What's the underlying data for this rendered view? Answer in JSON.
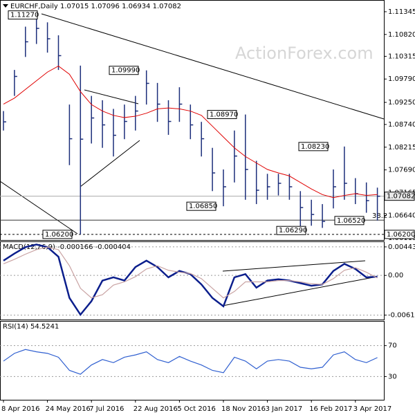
{
  "chart_data": [
    {
      "type": "ohlc",
      "title": "EURCHF,Daily 1.07015 1.07096 1.06934 1.07082",
      "watermark": "ActionForex.com",
      "categories": [
        "8 Apr 2016",
        null,
        null,
        null,
        "24 May 2016",
        null,
        null,
        null,
        "7 Jul 2016",
        null,
        null,
        null,
        "22 Aug 2016",
        null,
        null,
        null,
        "5 Oct 2016",
        null,
        null,
        null,
        "18 Nov 2016",
        null,
        null,
        null,
        "3 Jan 2017",
        null,
        null,
        null,
        "16 Feb 2017",
        null,
        null,
        null,
        "3 Apr 2017",
        null,
        null
      ],
      "high": [
        1.0905,
        1.1,
        1.11,
        1.1127,
        1.111,
        1.108,
        1.092,
        1.101,
        1.094,
        1.093,
        1.091,
        1.092,
        1.094,
        1.0999,
        1.097,
        1.093,
        1.096,
        1.092,
        1.088,
        1.082,
        1.077,
        1.086,
        1.0897,
        1.079,
        1.076,
        1.076,
        1.076,
        1.072,
        1.07,
        1.069,
        1.077,
        1.0823,
        1.075,
        1.074,
        1.0728
      ],
      "low": [
        1.086,
        1.094,
        1.103,
        1.106,
        1.104,
        1.1,
        1.078,
        1.062,
        1.083,
        1.082,
        1.08,
        1.084,
        1.086,
        1.092,
        1.088,
        1.085,
        1.088,
        1.084,
        1.08,
        1.072,
        1.0685,
        1.074,
        1.07,
        1.069,
        1.07,
        1.071,
        1.07,
        1.0629,
        1.064,
        1.0635,
        1.068,
        1.07,
        1.069,
        1.067,
        1.0652
      ],
      "close": [
        1.088,
        1.0985,
        1.1065,
        1.1096,
        1.1072,
        1.1033,
        1.0841,
        1.084,
        1.0889,
        1.0873,
        1.0849,
        1.0881,
        1.0905,
        1.0969,
        1.0921,
        1.0881,
        1.0921,
        1.0873,
        1.0841,
        1.0762,
        1.073,
        1.0801,
        1.077,
        1.0722,
        1.073,
        1.0738,
        1.073,
        1.0682,
        1.0666,
        1.065,
        1.073,
        1.0738,
        1.0714,
        1.0698,
        1.07082
      ],
      "color": "#1b2d7a",
      "ma_values": [
        1.0921,
        1.0935,
        1.0955,
        1.0975,
        1.0995,
        1.1009,
        1.099,
        1.095,
        1.092,
        1.0905,
        1.0895,
        1.089,
        1.0893,
        1.09,
        1.091,
        1.0912,
        1.091,
        1.0905,
        1.0895,
        1.087,
        1.0845,
        1.082,
        1.08,
        1.0785,
        1.077,
        1.0762,
        1.0755,
        1.074,
        1.0725,
        1.0712,
        1.0705,
        1.071,
        1.0714,
        1.071,
        1.0712
      ],
      "ma_color": "#e00000",
      "ylim": [
        1.0607,
        1.116
      ],
      "yticks": [
        1.11345,
        {
          "value": 1.1082,
          "label": "1.10820"
        },
        1.10315,
        {
          "value": 1.0979,
          "label": "1.09790"
        },
        {
          "value": 1.0925,
          "label": "1.09250"
        },
        {
          "value": 1.0874,
          "label": "1.08740"
        },
        1.08215,
        {
          "value": 1.0769,
          "label": "1.07690"
        },
        1.07165,
        {
          "value": 1.0664,
          "label": "1.06640"
        },
        1.06115
      ],
      "last": 1.07082,
      "level": {
        "value": 1.062,
        "label": "1.06200"
      },
      "fib": {
        "value": 1.0653,
        "label": "38.2"
      },
      "annotations": [
        {
          "value": 1.1127,
          "label": "1.11270"
        },
        {
          "value": 1.0999,
          "label": "1.09990"
        },
        {
          "value": 1.0897,
          "label": "1.08970"
        },
        {
          "value": 1.0823,
          "label": "1.08230"
        },
        {
          "value": 1.0685,
          "label": "1.06850"
        },
        {
          "value": 1.0629,
          "label": "1.06290"
        },
        {
          "value": 1.0652,
          "label": "1.06520"
        },
        {
          "value": 1.062,
          "label": "1.06200"
        }
      ]
    },
    {
      "type": "line",
      "title": "MACD(12,26,9) -0.000166 -0.000404",
      "series": [
        {
          "color": "#0b1e8c",
          "values": [
            0.0023,
            0.0034,
            0.0044,
            0.0048,
            0.0044,
            0.0029,
            -0.0035,
            -0.0061,
            -0.004,
            -0.0008,
            -0.0003,
            -0.0008,
            0.0013,
            0.0023,
            0.0013,
            -0.0003,
            0.0007,
            0.0002,
            -0.0014,
            -0.0035,
            -0.0048,
            -0.0003,
            0.0002,
            -0.0019,
            -0.0008,
            -0.0006,
            -0.0008,
            -0.0012,
            -0.0016,
            -0.0014,
            0.0007,
            0.0018,
            0.001,
            -0.0003,
            -0.0002
          ]
        },
        {
          "color": "#c9a3a3",
          "values": [
            0.0018,
            0.0025,
            0.0033,
            0.004,
            0.0044,
            0.004,
            0.0015,
            -0.002,
            -0.0035,
            -0.003,
            -0.0015,
            -0.001,
            -0.0002,
            0.001,
            0.0015,
            0.0008,
            0.0005,
            0.0003,
            -0.0005,
            -0.002,
            -0.0035,
            -0.0025,
            -0.001,
            -0.001,
            -0.001,
            -0.0008,
            -0.0008,
            -0.001,
            -0.0013,
            -0.0014,
            -0.0005,
            0.0008,
            0.0012,
            0.0005,
            -0.0004
          ]
        }
      ],
      "ylim": [
        -0.00686,
        0.00518
      ],
      "yticks": [
        0.004435,
        {
          "value": 0,
          "label": "0.00"
        },
        -0.00617
      ],
      "grid": true
    },
    {
      "type": "line",
      "title": "RSI(14) 54.5241",
      "series": [
        {
          "color": "#2f5fd0",
          "values": [
            50,
            60,
            65,
            62,
            60,
            55,
            38,
            33,
            45,
            52,
            48,
            55,
            58,
            62,
            52,
            48,
            56,
            50,
            45,
            38,
            35,
            55,
            50,
            40,
            50,
            52,
            50,
            42,
            40,
            42,
            58,
            62,
            52,
            48,
            54.5241
          ]
        }
      ],
      "ylim": [
        0,
        101
      ],
      "yticks": [
        70,
        30
      ],
      "grid": true
    }
  ]
}
